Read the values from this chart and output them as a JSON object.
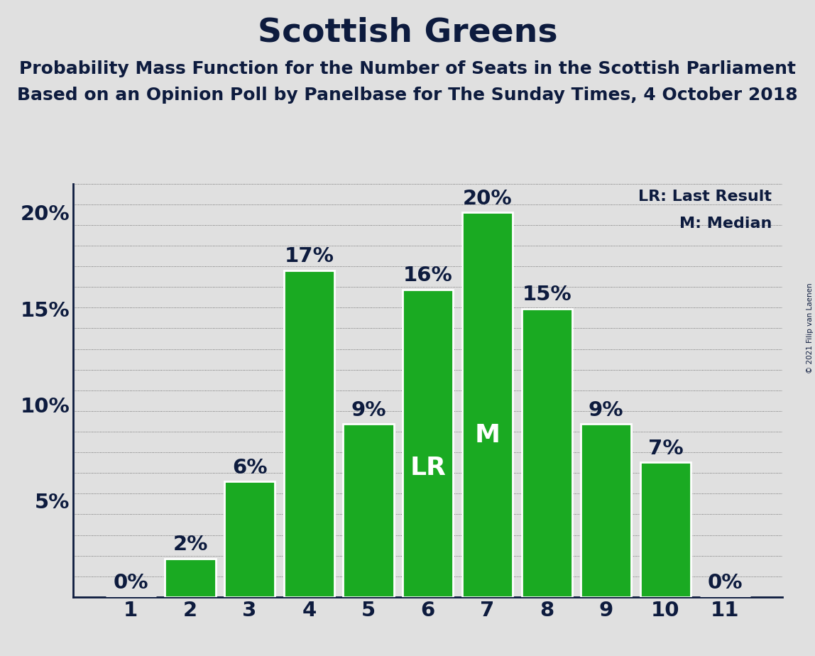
{
  "title": "Scottish Greens",
  "subtitle1": "Probability Mass Function for the Number of Seats in the Scottish Parliament",
  "subtitle2": "Based on an Opinion Poll by Panelbase for The Sunday Times, 4 October 2018",
  "copyright": "© 2021 Filip van Laenen",
  "categories": [
    1,
    2,
    3,
    4,
    5,
    6,
    7,
    8,
    9,
    10,
    11
  ],
  "values": [
    0,
    2,
    6,
    17,
    9,
    16,
    20,
    15,
    9,
    7,
    0
  ],
  "bar_color": "#1aaa22",
  "bar_edge_color": "#ffffff",
  "background_color": "#e0e0e0",
  "text_color": "#0d1b3e",
  "title_fontsize": 34,
  "subtitle_fontsize": 18,
  "tick_fontsize": 21,
  "annotation_fontsize": 21,
  "legend_fontsize": 16,
  "lr_bar": 6,
  "median_bar": 7,
  "legend_text": [
    "LR: Last Result",
    "M: Median"
  ],
  "ylim": [
    0,
    21.5
  ],
  "yticks": [
    0,
    5,
    10,
    15,
    20
  ],
  "ytick_labels": [
    "",
    "5%",
    "10%",
    "15%",
    "20%"
  ],
  "grid_color": "#555555",
  "num_grid_lines": 20
}
